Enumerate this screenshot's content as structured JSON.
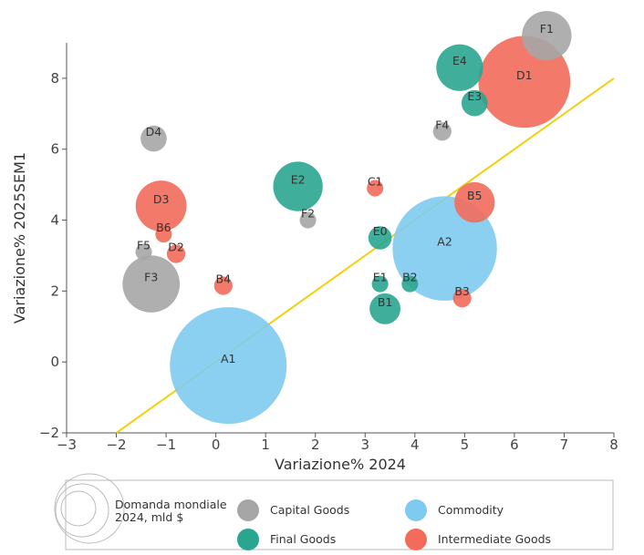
{
  "chart_data": {
    "type": "scatter",
    "xlabel": "Variazione% 2024",
    "ylabel": "Variazione% 2025SEM1",
    "xlim": [
      -3,
      8
    ],
    "ylim": [
      -2,
      9
    ],
    "xticks": [
      "−3",
      "−2",
      "−1",
      "0",
      "1",
      "2",
      "3",
      "4",
      "5",
      "6",
      "7",
      "8"
    ],
    "yticks": [
      "−2",
      "0",
      "2",
      "4",
      "6",
      "8"
    ],
    "grid": false,
    "colors": {
      "Capital Goods": "#a6a6a6",
      "Commodity": "#7fcbf0",
      "Final Goods": "#2aa58f",
      "Intermediate Goods": "#f26b5b",
      "trendline": "#f2d00f"
    },
    "trendline": {
      "x": [
        -2,
        8
      ],
      "y": [
        -2,
        8
      ]
    },
    "points": [
      {
        "label": "A1",
        "group": "Commodity",
        "x": 0.25,
        "y": -0.1,
        "size": 100
      },
      {
        "label": "A2",
        "group": "Commodity",
        "x": 4.6,
        "y": 3.2,
        "size": 80
      },
      {
        "label": "F1",
        "group": "Capital Goods",
        "x": 6.65,
        "y": 9.2,
        "size": 18
      },
      {
        "label": "D1",
        "group": "Intermediate Goods",
        "x": 6.2,
        "y": 7.9,
        "size": 62
      },
      {
        "label": "E4",
        "group": "Final Goods",
        "x": 4.9,
        "y": 8.3,
        "size": 16
      },
      {
        "label": "E3",
        "group": "Final Goods",
        "x": 5.2,
        "y": 7.3,
        "size": 5
      },
      {
        "label": "F4",
        "group": "Capital Goods",
        "x": 4.55,
        "y": 6.5,
        "size": 2.5
      },
      {
        "label": "D4",
        "group": "Capital Goods",
        "x": -1.25,
        "y": 6.3,
        "size": 5
      },
      {
        "label": "E2",
        "group": "Final Goods",
        "x": 1.65,
        "y": 4.95,
        "size": 18
      },
      {
        "label": "C1",
        "group": "Intermediate Goods",
        "x": 3.2,
        "y": 4.9,
        "size": 2
      },
      {
        "label": "B5",
        "group": "Intermediate Goods",
        "x": 5.2,
        "y": 4.5,
        "size": 12
      },
      {
        "label": "D3",
        "group": "Intermediate Goods",
        "x": -1.1,
        "y": 4.4,
        "size": 19
      },
      {
        "label": "F2",
        "group": "Capital Goods",
        "x": 1.85,
        "y": 4.0,
        "size": 2
      },
      {
        "label": "B6",
        "group": "Intermediate Goods",
        "x": -1.05,
        "y": 3.6,
        "size": 2
      },
      {
        "label": "E0",
        "group": "Final Goods",
        "x": 3.3,
        "y": 3.5,
        "size": 4
      },
      {
        "label": "F5",
        "group": "Capital Goods",
        "x": -1.45,
        "y": 3.1,
        "size": 2
      },
      {
        "label": "D2",
        "group": "Intermediate Goods",
        "x": -0.8,
        "y": 3.05,
        "size": 2.5
      },
      {
        "label": "F3",
        "group": "Capital Goods",
        "x": -1.3,
        "y": 2.2,
        "size": 24
      },
      {
        "label": "B4",
        "group": "Intermediate Goods",
        "x": 0.15,
        "y": 2.15,
        "size": 2.5
      },
      {
        "label": "E1",
        "group": "Final Goods",
        "x": 3.3,
        "y": 2.2,
        "size": 2
      },
      {
        "label": "B2",
        "group": "Final Goods",
        "x": 3.9,
        "y": 2.2,
        "size": 2
      },
      {
        "label": "B1",
        "group": "Final Goods",
        "x": 3.4,
        "y": 1.5,
        "size": 7
      },
      {
        "label": "B3",
        "group": "Intermediate Goods",
        "x": 4.95,
        "y": 1.8,
        "size": 2.5
      }
    ],
    "legend": {
      "size_title": "Domanda mondiale 2024, mld $",
      "size_title_line1": "Domanda mondiale",
      "size_title_line2": "2024, mld $",
      "placement": "bottom",
      "items": [
        "Capital Goods",
        "Commodity",
        "Final Goods",
        "Intermediate Goods"
      ]
    }
  }
}
